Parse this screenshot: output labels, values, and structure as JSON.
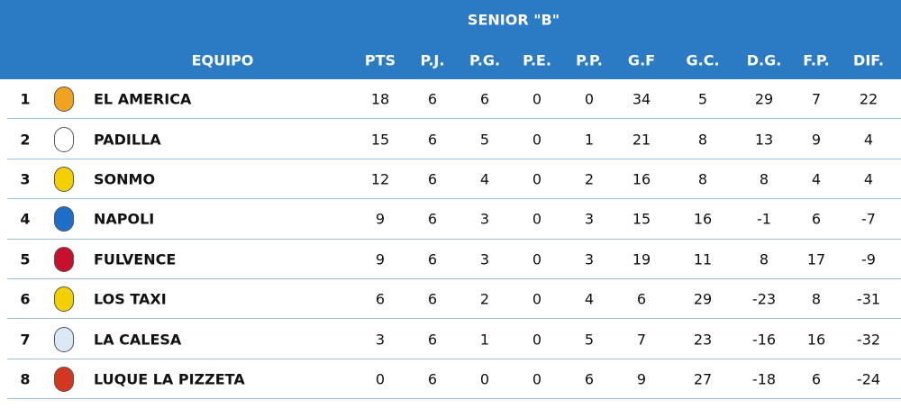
{
  "header": {
    "title": "SENIOR \"B\"",
    "columns": [
      "EQUIPO",
      "PTS",
      "P.J.",
      "P.G.",
      "P.E.",
      "P.P.",
      "G.F",
      "G.C.",
      "D.G.",
      "F.P.",
      "DIF."
    ]
  },
  "table": {
    "rows": [
      [
        1,
        "EL AMERICA",
        18,
        6,
        6,
        0,
        0,
        34,
        5,
        29,
        7,
        22
      ],
      [
        2,
        "PADILLA",
        15,
        6,
        5,
        0,
        1,
        21,
        8,
        13,
        9,
        4
      ],
      [
        3,
        "SONMO",
        12,
        6,
        4,
        0,
        2,
        16,
        8,
        8,
        4,
        4
      ],
      [
        4,
        "NAPOLI",
        9,
        6,
        3,
        0,
        3,
        15,
        16,
        -1,
        6,
        -7
      ],
      [
        5,
        "FULVENCE",
        9,
        6,
        3,
        0,
        3,
        19,
        11,
        8,
        17,
        -9
      ],
      [
        6,
        "LOS TAXI",
        6,
        6,
        2,
        0,
        4,
        6,
        29,
        -23,
        8,
        -31
      ],
      [
        7,
        "LA CALESA",
        3,
        6,
        1,
        0,
        5,
        7,
        23,
        -16,
        16,
        -32
      ],
      [
        8,
        "LUQUE LA PIZZETA",
        0,
        6,
        0,
        0,
        6,
        9,
        27,
        -18,
        6,
        -24
      ]
    ]
  }
}
